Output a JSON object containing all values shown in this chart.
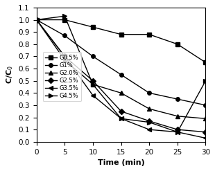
{
  "time": [
    0,
    5,
    10,
    15,
    20,
    25,
    30
  ],
  "series": {
    "G0.5%": [
      1.0,
      1.0,
      0.94,
      0.88,
      0.88,
      0.8,
      0.65
    ],
    "G1%": [
      1.0,
      0.87,
      0.7,
      0.55,
      0.4,
      0.35,
      0.3
    ],
    "G2.0%": [
      1.0,
      0.67,
      0.47,
      0.4,
      0.27,
      0.21,
      0.19
    ],
    "G2.5%": [
      1.0,
      0.7,
      0.5,
      0.25,
      0.17,
      0.1,
      0.08
    ],
    "G3.5%": [
      1.0,
      0.7,
      0.38,
      0.19,
      0.1,
      0.08,
      0.03
    ],
    "G4.5%": [
      1.0,
      1.03,
      0.47,
      0.19,
      0.16,
      0.08,
      0.5
    ]
  },
  "markers": [
    "s",
    "o",
    "^",
    "D",
    "<",
    ">"
  ],
  "xlabel": "Time (min)",
  "ylabel": "C/C$_0$",
  "ylim": [
    0.0,
    1.1
  ],
  "xlim": [
    0,
    30
  ],
  "xticks": [
    0,
    5,
    10,
    15,
    20,
    25,
    30
  ],
  "yticks": [
    0.0,
    0.1,
    0.2,
    0.3,
    0.4,
    0.5,
    0.6,
    0.7,
    0.8,
    0.9,
    1.0,
    1.1
  ],
  "legend_labels": [
    "G0.5%",
    "G1%",
    "G2.0%",
    "G2.5%",
    "G3.5%",
    "G4.5%"
  ]
}
